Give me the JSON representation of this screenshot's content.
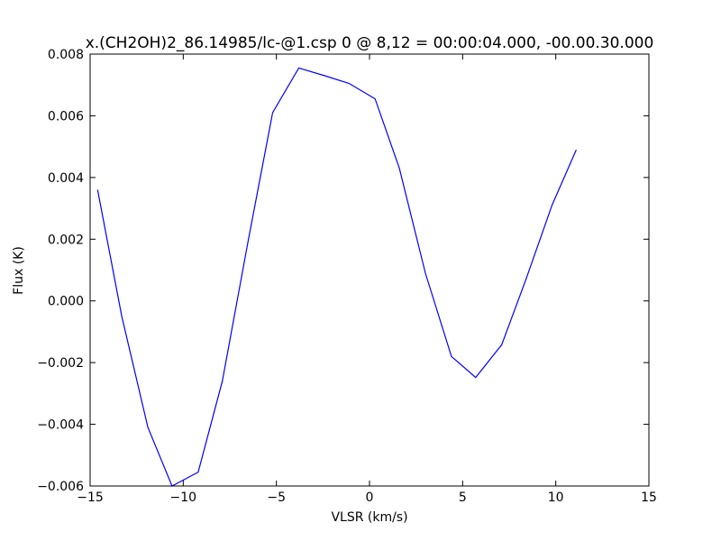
{
  "chart_data": {
    "type": "line",
    "title": "x.(CH2OH)2_86.14985/lc-@1.csp 0 @ 8,12 = 00:00:04.000, -00.00.30.000",
    "xlabel": "VLSR (km/s)",
    "ylabel": "Flux (K)",
    "xlim": [
      -15,
      15
    ],
    "ylim": [
      -0.006,
      0.008
    ],
    "xticks": [
      -15,
      -10,
      -5,
      0,
      5,
      10,
      15
    ],
    "xtick_labels": [
      "−15",
      "−10",
      "−5",
      "0",
      "5",
      "10",
      "15"
    ],
    "yticks": [
      -0.006,
      -0.004,
      -0.002,
      0.0,
      0.002,
      0.004,
      0.006,
      0.008
    ],
    "ytick_labels": [
      "−0.006",
      "−0.004",
      "−0.002",
      "0.000",
      "0.002",
      "0.004",
      "0.006",
      "0.008"
    ],
    "grid": false,
    "line_color": "#0000ff",
    "series": [
      {
        "x": [
          -14.6,
          -13.3,
          -11.9,
          -10.6,
          -9.2,
          -7.9,
          -6.5,
          -5.2,
          -3.8,
          -2.4,
          -1.1,
          0.3,
          1.6,
          3.0,
          4.4,
          5.7,
          7.1,
          8.4,
          9.8,
          11.1
        ],
        "y": [
          0.0036,
          -0.0005,
          -0.0041,
          -0.006,
          -0.00555,
          -0.0026,
          0.002,
          0.0061,
          0.00755,
          0.0073,
          0.00705,
          0.00655,
          0.0043,
          0.0009,
          -0.0018,
          -0.00248,
          -0.00142,
          0.0007,
          0.0031,
          0.0049
        ]
      }
    ]
  }
}
